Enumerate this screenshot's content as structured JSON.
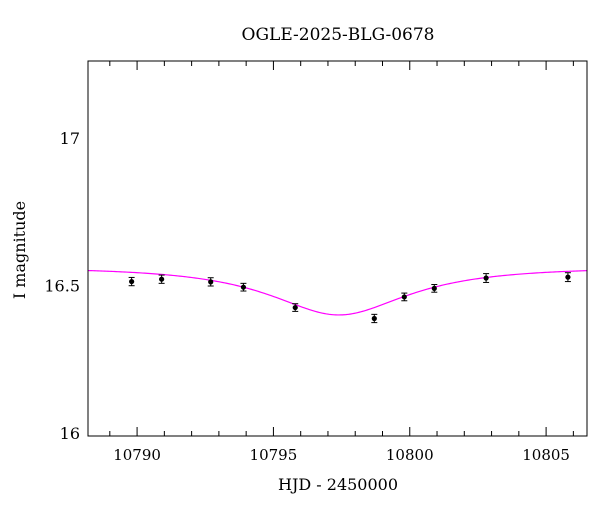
{
  "chart_data": {
    "type": "scatter",
    "title": "OGLE-2025-BLG-0678",
    "xlabel": "HJD - 2450000",
    "ylabel": "I magnitude",
    "xlim": [
      10788.2,
      10806.5
    ],
    "ylim": [
      17.26,
      15.99
    ],
    "y_inverted": true,
    "grid": false,
    "x_major_ticks": [
      10790,
      10795,
      10800,
      10805
    ],
    "x_tick_labels": [
      "10790",
      "10795",
      "10800",
      "10805"
    ],
    "y_major_ticks": [
      16,
      16.5,
      17
    ],
    "y_tick_labels": [
      "16",
      "16.5",
      "17"
    ],
    "series": [
      {
        "kind": "points_with_errorbars",
        "color": "#000000",
        "points": [
          {
            "x": 10789.8,
            "y": 16.513,
            "err": 0.014
          },
          {
            "x": 10790.9,
            "y": 16.521,
            "err": 0.014
          },
          {
            "x": 10792.7,
            "y": 16.512,
            "err": 0.014
          },
          {
            "x": 10793.9,
            "y": 16.494,
            "err": 0.013
          },
          {
            "x": 10795.8,
            "y": 16.425,
            "err": 0.013
          },
          {
            "x": 10798.7,
            "y": 16.388,
            "err": 0.014
          },
          {
            "x": 10799.8,
            "y": 16.461,
            "err": 0.013
          },
          {
            "x": 10800.9,
            "y": 16.49,
            "err": 0.013
          },
          {
            "x": 10802.8,
            "y": 16.525,
            "err": 0.015
          },
          {
            "x": 10805.8,
            "y": 16.528,
            "err": 0.015
          }
        ]
      },
      {
        "kind": "model_curve",
        "color": "#ff00ff",
        "model": {
          "t0": 10797.4,
          "tE": 4.6,
          "baseline": 16.56,
          "peak": 16.4
        }
      }
    ]
  }
}
